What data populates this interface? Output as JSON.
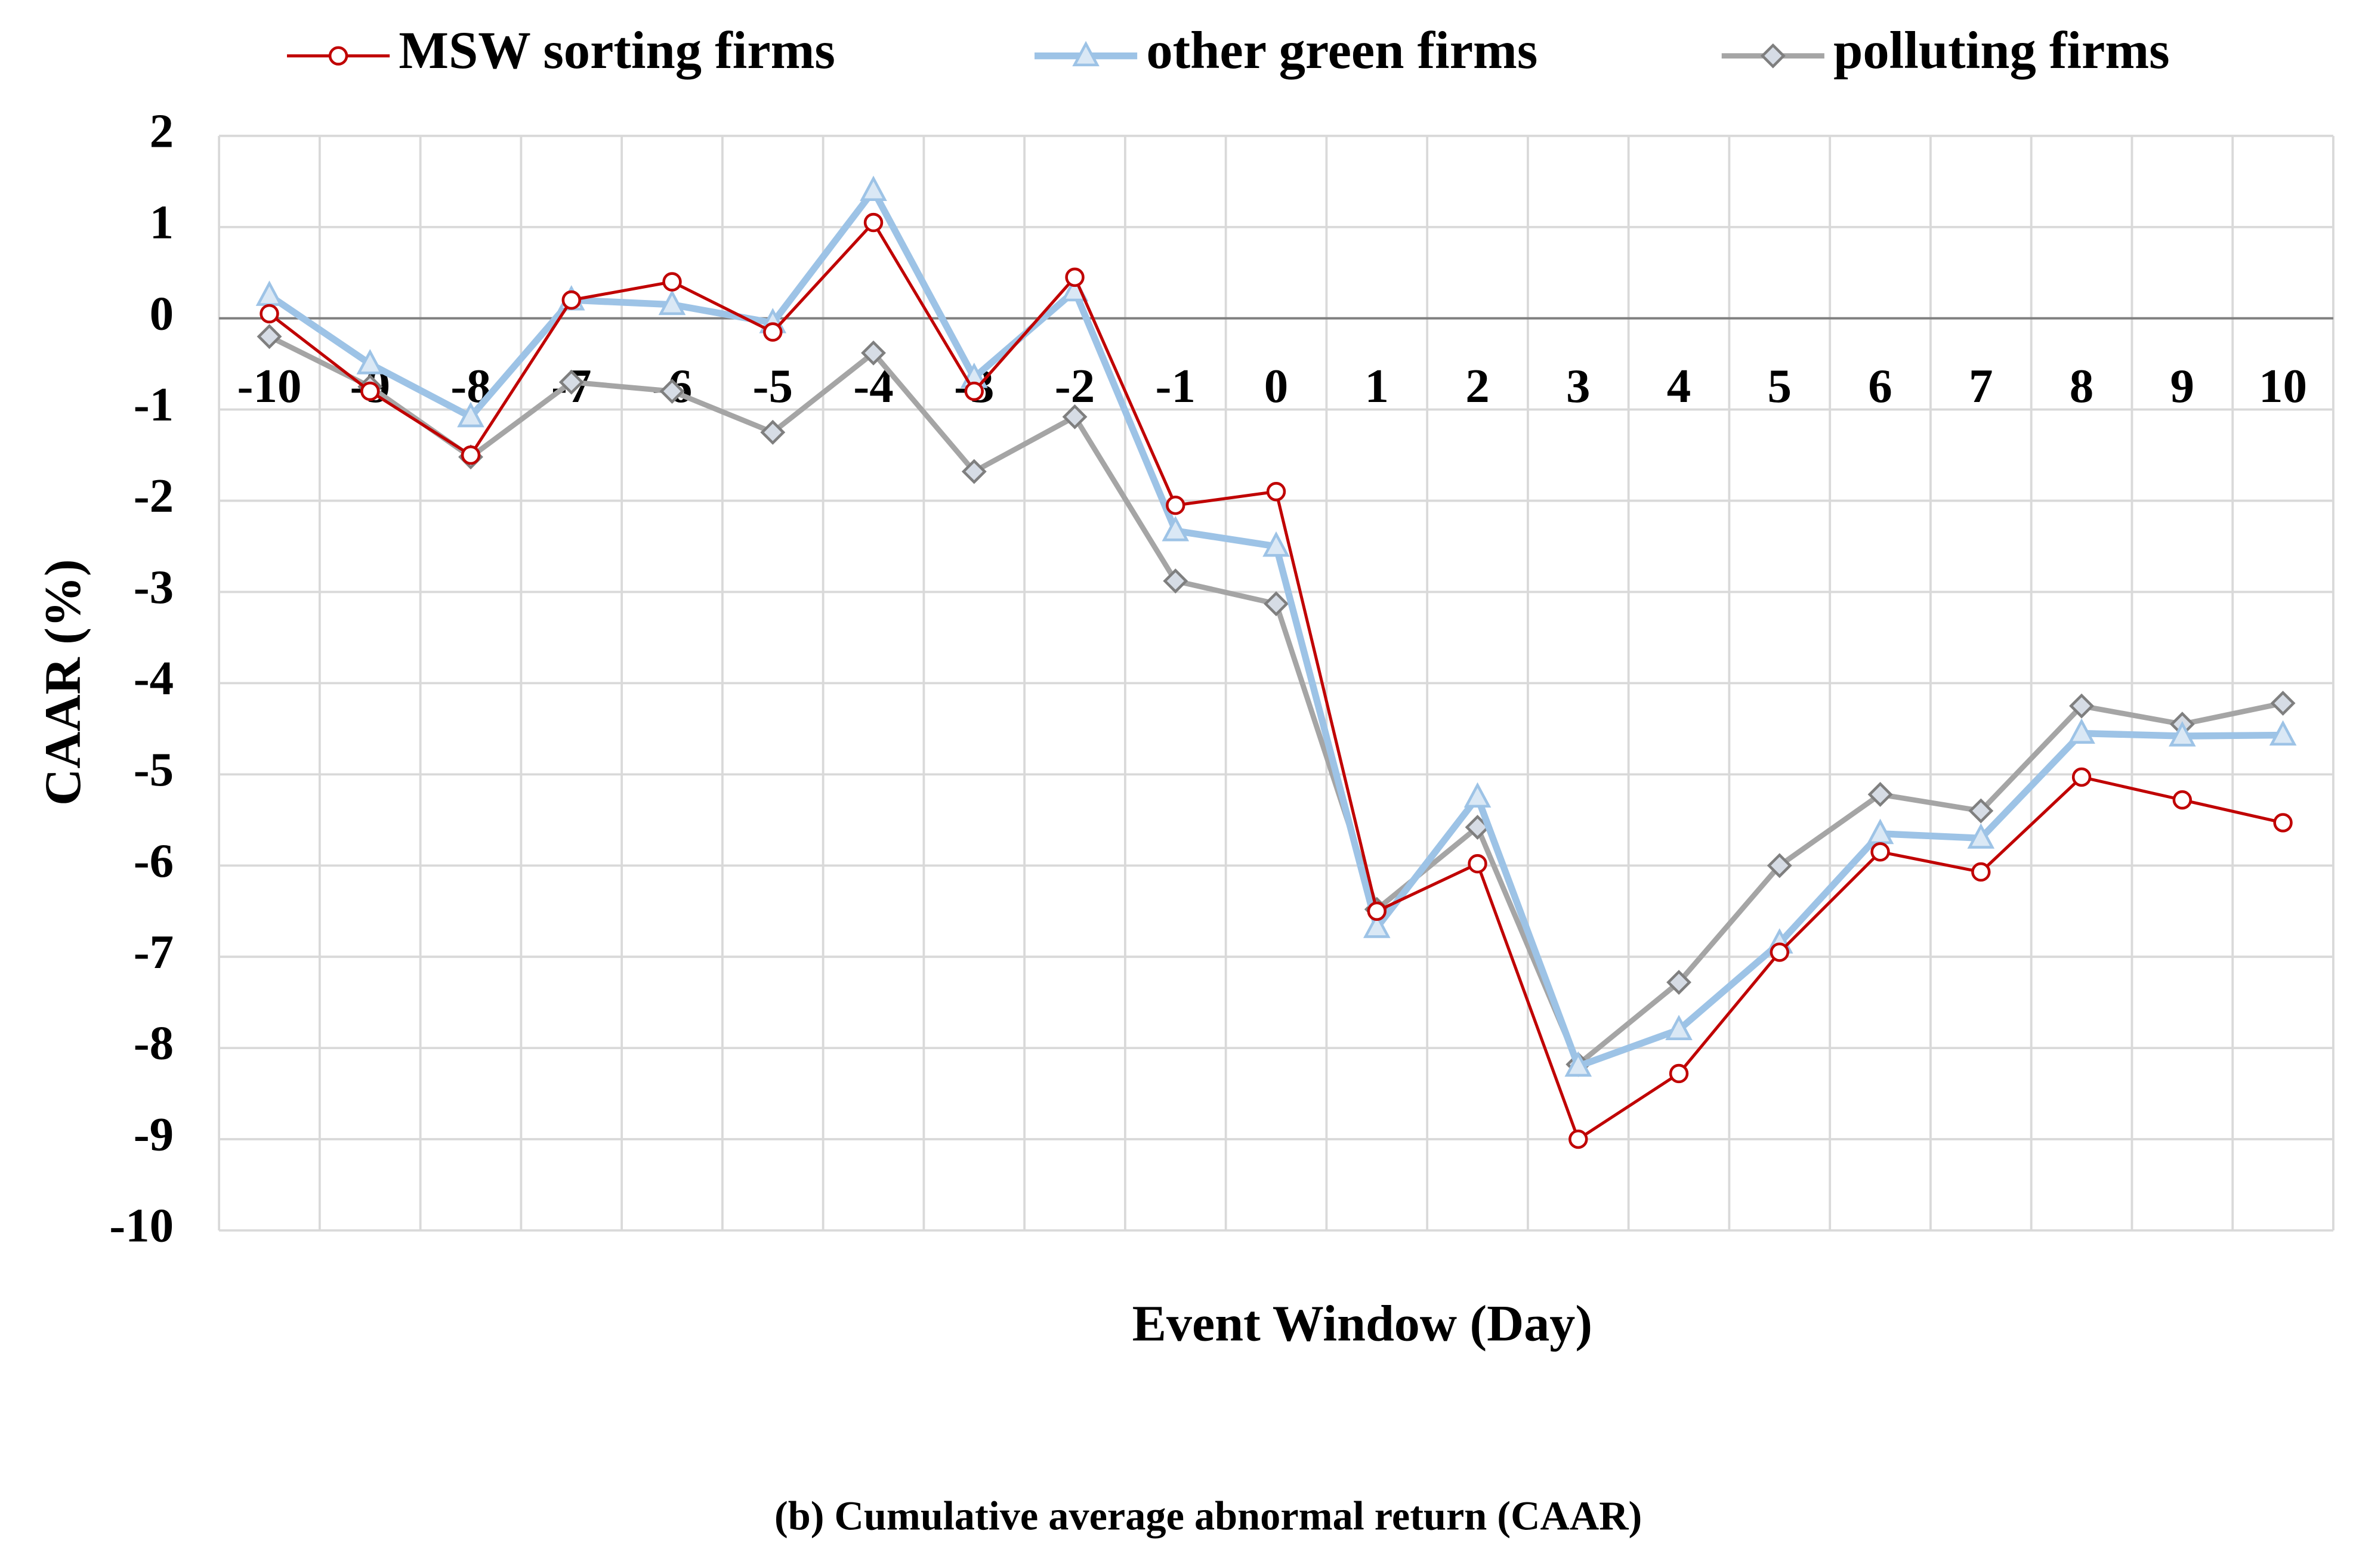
{
  "chart_data": {
    "type": "line",
    "title": "(b) Cumulative average abnormal return (CAAR)",
    "x_label": "Event Window (Day)",
    "y_label": "CAAR (%)",
    "categories": [
      "-10",
      "-9",
      "-8",
      "-7",
      "-6",
      "-5",
      "-4",
      "-3",
      "-2",
      "-1",
      "0",
      "1",
      "2",
      "3",
      "4",
      "5",
      "6",
      "7",
      "8",
      "9",
      "10"
    ],
    "series": [
      {
        "name": "MSW sorting firms",
        "color": "#c00000",
        "marker": "circle",
        "values": [
          0.05,
          -0.8,
          -1.5,
          0.2,
          0.4,
          -0.15,
          1.05,
          -0.8,
          0.45,
          -2.05,
          -1.9,
          -6.5,
          -5.98,
          -9.0,
          -8.28,
          -6.95,
          -5.85,
          -6.07,
          -5.03,
          -5.28,
          -5.53
        ]
      },
      {
        "name": "other green firms",
        "color": "#9dc3e6",
        "marker": "triangle",
        "values": [
          0.25,
          -0.5,
          -1.08,
          0.2,
          0.15,
          -0.05,
          1.4,
          -0.65,
          0.3,
          -2.33,
          -2.5,
          -6.68,
          -5.25,
          -8.2,
          -7.8,
          -6.85,
          -5.65,
          -5.7,
          -4.55,
          -4.58,
          -4.57
        ]
      },
      {
        "name": "polluting firms",
        "color": "#a5a5a5",
        "marker": "diamond",
        "values": [
          -0.2,
          -0.75,
          -1.52,
          -0.7,
          -0.8,
          -1.25,
          -0.38,
          -1.68,
          -1.08,
          -2.88,
          -3.13,
          -6.48,
          -5.58,
          -8.18,
          -7.28,
          -6.0,
          -5.22,
          -5.4,
          -4.25,
          -4.45,
          -4.22
        ]
      }
    ],
    "ylim": [
      -10,
      2
    ],
    "yticks": [
      -10,
      -9,
      -8,
      -7,
      -6,
      -5,
      -4,
      -3,
      -2,
      -1,
      0,
      1,
      2
    ],
    "grid": true,
    "legend": "top"
  }
}
